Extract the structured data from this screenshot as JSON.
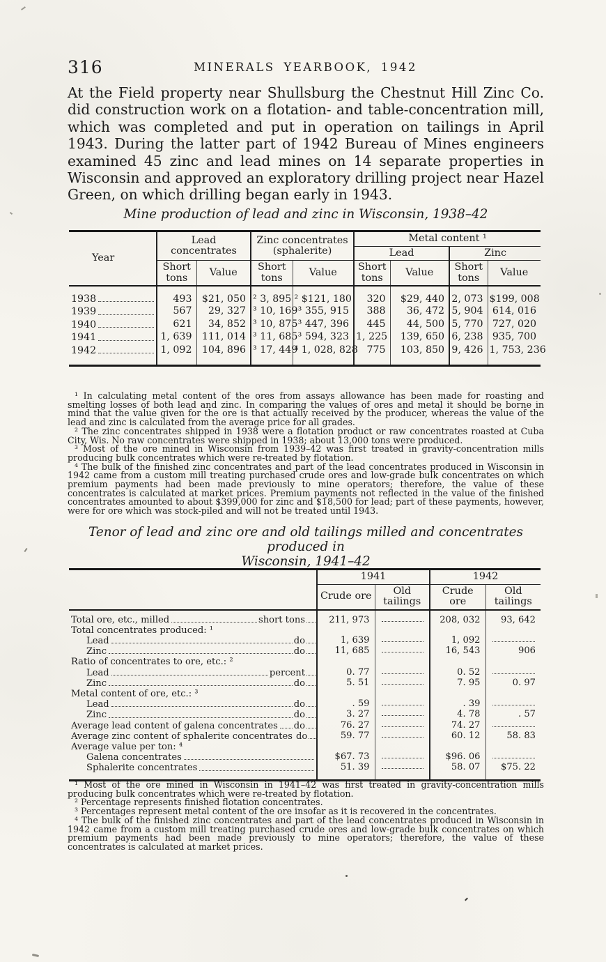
{
  "page": {
    "number": "316",
    "running_title": "MINERALS YEARBOOK, 1942",
    "intro_paragraph": "At the Field property near Shullsburg the Chestnut Hill Zinc Co. did construction work on a flotation- and table-concentration mill, which was completed and put in operation on tailings in April 1943.  During the latter part of 1942 Bureau of Mines engineers examined 45 zinc and lead mines on 14 separate properties in Wisconsin and approved an exploratory drilling project near Hazel Green, on which drilling began early in 1943."
  },
  "table1": {
    "title": "Mine production of lead and zinc in Wisconsin, 1938–42",
    "header": {
      "year": "Year",
      "lead_concentrates": "Lead concentrates",
      "zinc_concentrates": "Zinc concentrates (sphalerite)",
      "metal_content": "Metal content ¹",
      "lead": "Lead",
      "zinc": "Zinc",
      "short_tons": "Short tons",
      "value": "Value"
    },
    "rows": [
      {
        "year": "1938",
        "cells": [
          "493",
          "$21, 050",
          "² 3, 895",
          "² $121, 180",
          "320",
          "$29, 440",
          "2, 073",
          "$199, 008"
        ]
      },
      {
        "year": "1939",
        "cells": [
          "567",
          "29, 327",
          "³ 10, 169",
          "³ 355, 915",
          "388",
          "36, 472",
          "5, 904",
          "614, 016"
        ]
      },
      {
        "year": "1940",
        "cells": [
          "621",
          "34, 852",
          "³ 10, 875",
          "³ 447, 396",
          "445",
          "44, 500",
          "5, 770",
          "727, 020"
        ]
      },
      {
        "year": "1941",
        "cells": [
          "1, 639",
          "111, 014",
          "³ 11, 685",
          "³ 594, 323",
          "1, 225",
          "139, 650",
          "6, 238",
          "935, 700"
        ]
      },
      {
        "year": "1942",
        "cells": [
          "1, 092",
          "104, 896",
          "³ 17, 449",
          "⁴ 1, 028, 828",
          "775",
          "103, 850",
          "9, 426",
          "1, 753, 236"
        ]
      }
    ],
    "footnotes": [
      "¹ In calculating metal content of the ores from assays allowance has been made for roasting and smelting losses of both lead and zinc.  In comparing the values of ores and metal it should be borne in mind that the value given for the ore is that actually received by the producer, whereas the value of the lead and zinc is calculated from the average price for all grades.",
      "² The zinc concentrates shipped in 1938 were a flotation product or raw concentrates roasted at Cuba City, Wis.  No raw concentrates were shipped in 1938; about 13,000 tons were produced.",
      "³ Most of the ore mined in Wisconsin from 1939–42 was first treated in gravity-concentration mills producing bulk concentrates which were re-treated by flotation.",
      "⁴ The bulk of the finished zinc concentrates and part of the lead concentrates produced in Wisconsin in 1942 came from a custom mill treating purchased crude ores and low-grade bulk concentrates on which premium payments had been made previously to mine operators; therefore, the value of these concentrates is calculated at market prices.  Premium payments not reflected in the value of the finished concentrates amounted to about $399,000 for zinc and $18,500 for lead; part of these payments, however, were for ore which was stock-piled and will not be treated until 1943."
    ]
  },
  "table2": {
    "title_line1": "Tenor of lead and zinc ore and old tailings milled and concentrates produced in",
    "title_line2": "Wisconsin, 1941–42",
    "header": {
      "year_1941": "1941",
      "year_1942": "1942",
      "crude_ore": "Crude ore",
      "old_tailings": "Old tailings"
    },
    "rows": [
      {
        "label": "Total ore, etc., milled",
        "unit": "short tons",
        "indent": 0,
        "values": [
          "211, 973",
          null,
          "208, 032",
          "93, 642"
        ]
      },
      {
        "label": "Total concentrates produced: ¹",
        "group": true
      },
      {
        "label": "Lead",
        "unit": "do",
        "indent": 1,
        "values": [
          "1, 639",
          null,
          "1, 092",
          null
        ]
      },
      {
        "label": "Zinc",
        "unit": "do",
        "indent": 1,
        "values": [
          "11, 685",
          null,
          "16, 543",
          "906"
        ]
      },
      {
        "label": "Ratio of concentrates to ore, etc.: ²",
        "group": true
      },
      {
        "label": "Lead",
        "unit": "percent",
        "indent": 1,
        "values": [
          "0. 77",
          null,
          "0. 52",
          null
        ]
      },
      {
        "label": "Zinc",
        "unit": "do",
        "indent": 1,
        "values": [
          "5. 51",
          null,
          "7. 95",
          "0. 97"
        ]
      },
      {
        "label": "Metal content of ore, etc.: ³",
        "group": true
      },
      {
        "label": "Lead",
        "unit": "do",
        "indent": 1,
        "values": [
          ". 59",
          null,
          ". 39",
          null
        ]
      },
      {
        "label": "Zinc",
        "unit": "do",
        "indent": 1,
        "values": [
          "3. 27",
          null,
          "4. 78",
          ". 57"
        ]
      },
      {
        "label": "Average lead content of galena concentrates",
        "unit": "do",
        "indent": 0,
        "values": [
          "76. 27",
          null,
          "74. 27",
          null
        ]
      },
      {
        "label": "Average zinc content of sphalerite concentrates",
        "unit": "do",
        "indent": 0,
        "values": [
          "59. 77",
          null,
          "60. 12",
          "58. 83"
        ]
      },
      {
        "label": "Average value per ton: ⁴",
        "group": true
      },
      {
        "label": "Galena concentrates",
        "unit": "",
        "indent": 1,
        "values": [
          "$67. 73",
          null,
          "$96. 06",
          null
        ]
      },
      {
        "label": "Sphalerite concentrates",
        "unit": "",
        "indent": 1,
        "values": [
          "51. 39",
          null,
          "58. 07",
          "$75. 22"
        ]
      }
    ],
    "footnotes": [
      "¹ Most of the ore mined in Wisconsin in 1941–42 was first treated in gravity-concentration mills producing bulk concentrates which were re-treated by flotation.",
      "² Percentage represents finished flotation concentrates.",
      "³ Percentages represent metal content of the ore insofar as it is recovered in the concentrates.",
      "⁴ The bulk of the finished zinc concentrates and part of the lead concentrates produced in Wisconsin in 1942 came from a custom mill treating purchased crude ores and low-grade bulk concentrates on which premium payments had been made previously to mine operators; therefore, the value of these concentrates is calculated at market prices."
    ]
  }
}
